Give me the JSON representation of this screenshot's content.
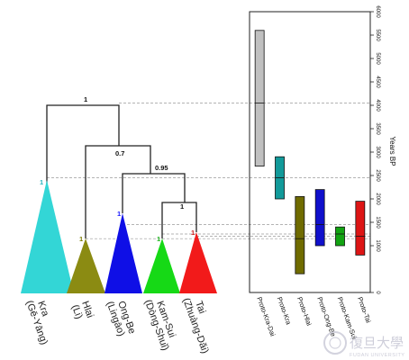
{
  "tree": {
    "node_labels": [
      "1",
      "0.7",
      "0.95",
      "1"
    ],
    "tips": [
      {
        "support": "1",
        "support_color": "#2bb5c0",
        "color": "#33d6d6",
        "label_line1": "Kra",
        "label_line2": "(Gē-Yāng)"
      },
      {
        "support": "1",
        "support_color": "#7b7a00",
        "color": "#8b8b12",
        "label_line1": "Hlai",
        "label_line2": "(Li)"
      },
      {
        "support": "1",
        "support_color": "#1a1aff",
        "color": "#0f0fe6",
        "label_line1": "Ong-Be",
        "label_line2": "(Lingāo)"
      },
      {
        "support": "1",
        "support_color": "#1bb51b",
        "color": "#16d916",
        "label_line1": "Kam-Sui",
        "label_line2": "(Dòng-Shuǐ)"
      },
      {
        "support": "1",
        "support_color": "#cc1a1a",
        "color": "#f21a1a",
        "label_line1": "Tai",
        "label_line2": "(Zhuàng-Dǎi)"
      }
    ]
  },
  "chart_data": {
    "type": "box",
    "ylabel": "Years BP",
    "ylim": [
      0,
      6000
    ],
    "yticks": [
      0,
      1000,
      1500,
      2000,
      2500,
      3000,
      3500,
      4000,
      4500,
      5000,
      5500,
      6000
    ],
    "ytick_labels": [
      "0",
      "1000",
      "1500",
      "2000",
      "2500",
      "3000",
      "3500",
      "4000",
      "4500",
      "5000",
      "5500",
      "6000"
    ],
    "categories": [
      "Proto-Kra-Dai",
      "Proto-Kra",
      "Proto-Hlai",
      "Proto-Ong-Be",
      "Proto-Kam-Sui",
      "Proto-Tai"
    ],
    "series": [
      {
        "low": 2700,
        "high": 5600,
        "median": 4050,
        "color": "#c0c0c0"
      },
      {
        "low": 2000,
        "high": 2900,
        "median": 2450,
        "color": "#129a9a"
      },
      {
        "low": 400,
        "high": 2050,
        "median": 1150,
        "color": "#6f6b00"
      },
      {
        "low": 1000,
        "high": 2200,
        "median": 1450,
        "color": "#1010cc"
      },
      {
        "low": 1000,
        "high": 1400,
        "median": 1250,
        "color": "#12a312"
      },
      {
        "low": 800,
        "high": 1950,
        "median": 1200,
        "color": "#dd1515"
      }
    ]
  },
  "watermark": {
    "glyphs": "復旦大學",
    "subtext": "FUDAN UNIVERSITY"
  }
}
